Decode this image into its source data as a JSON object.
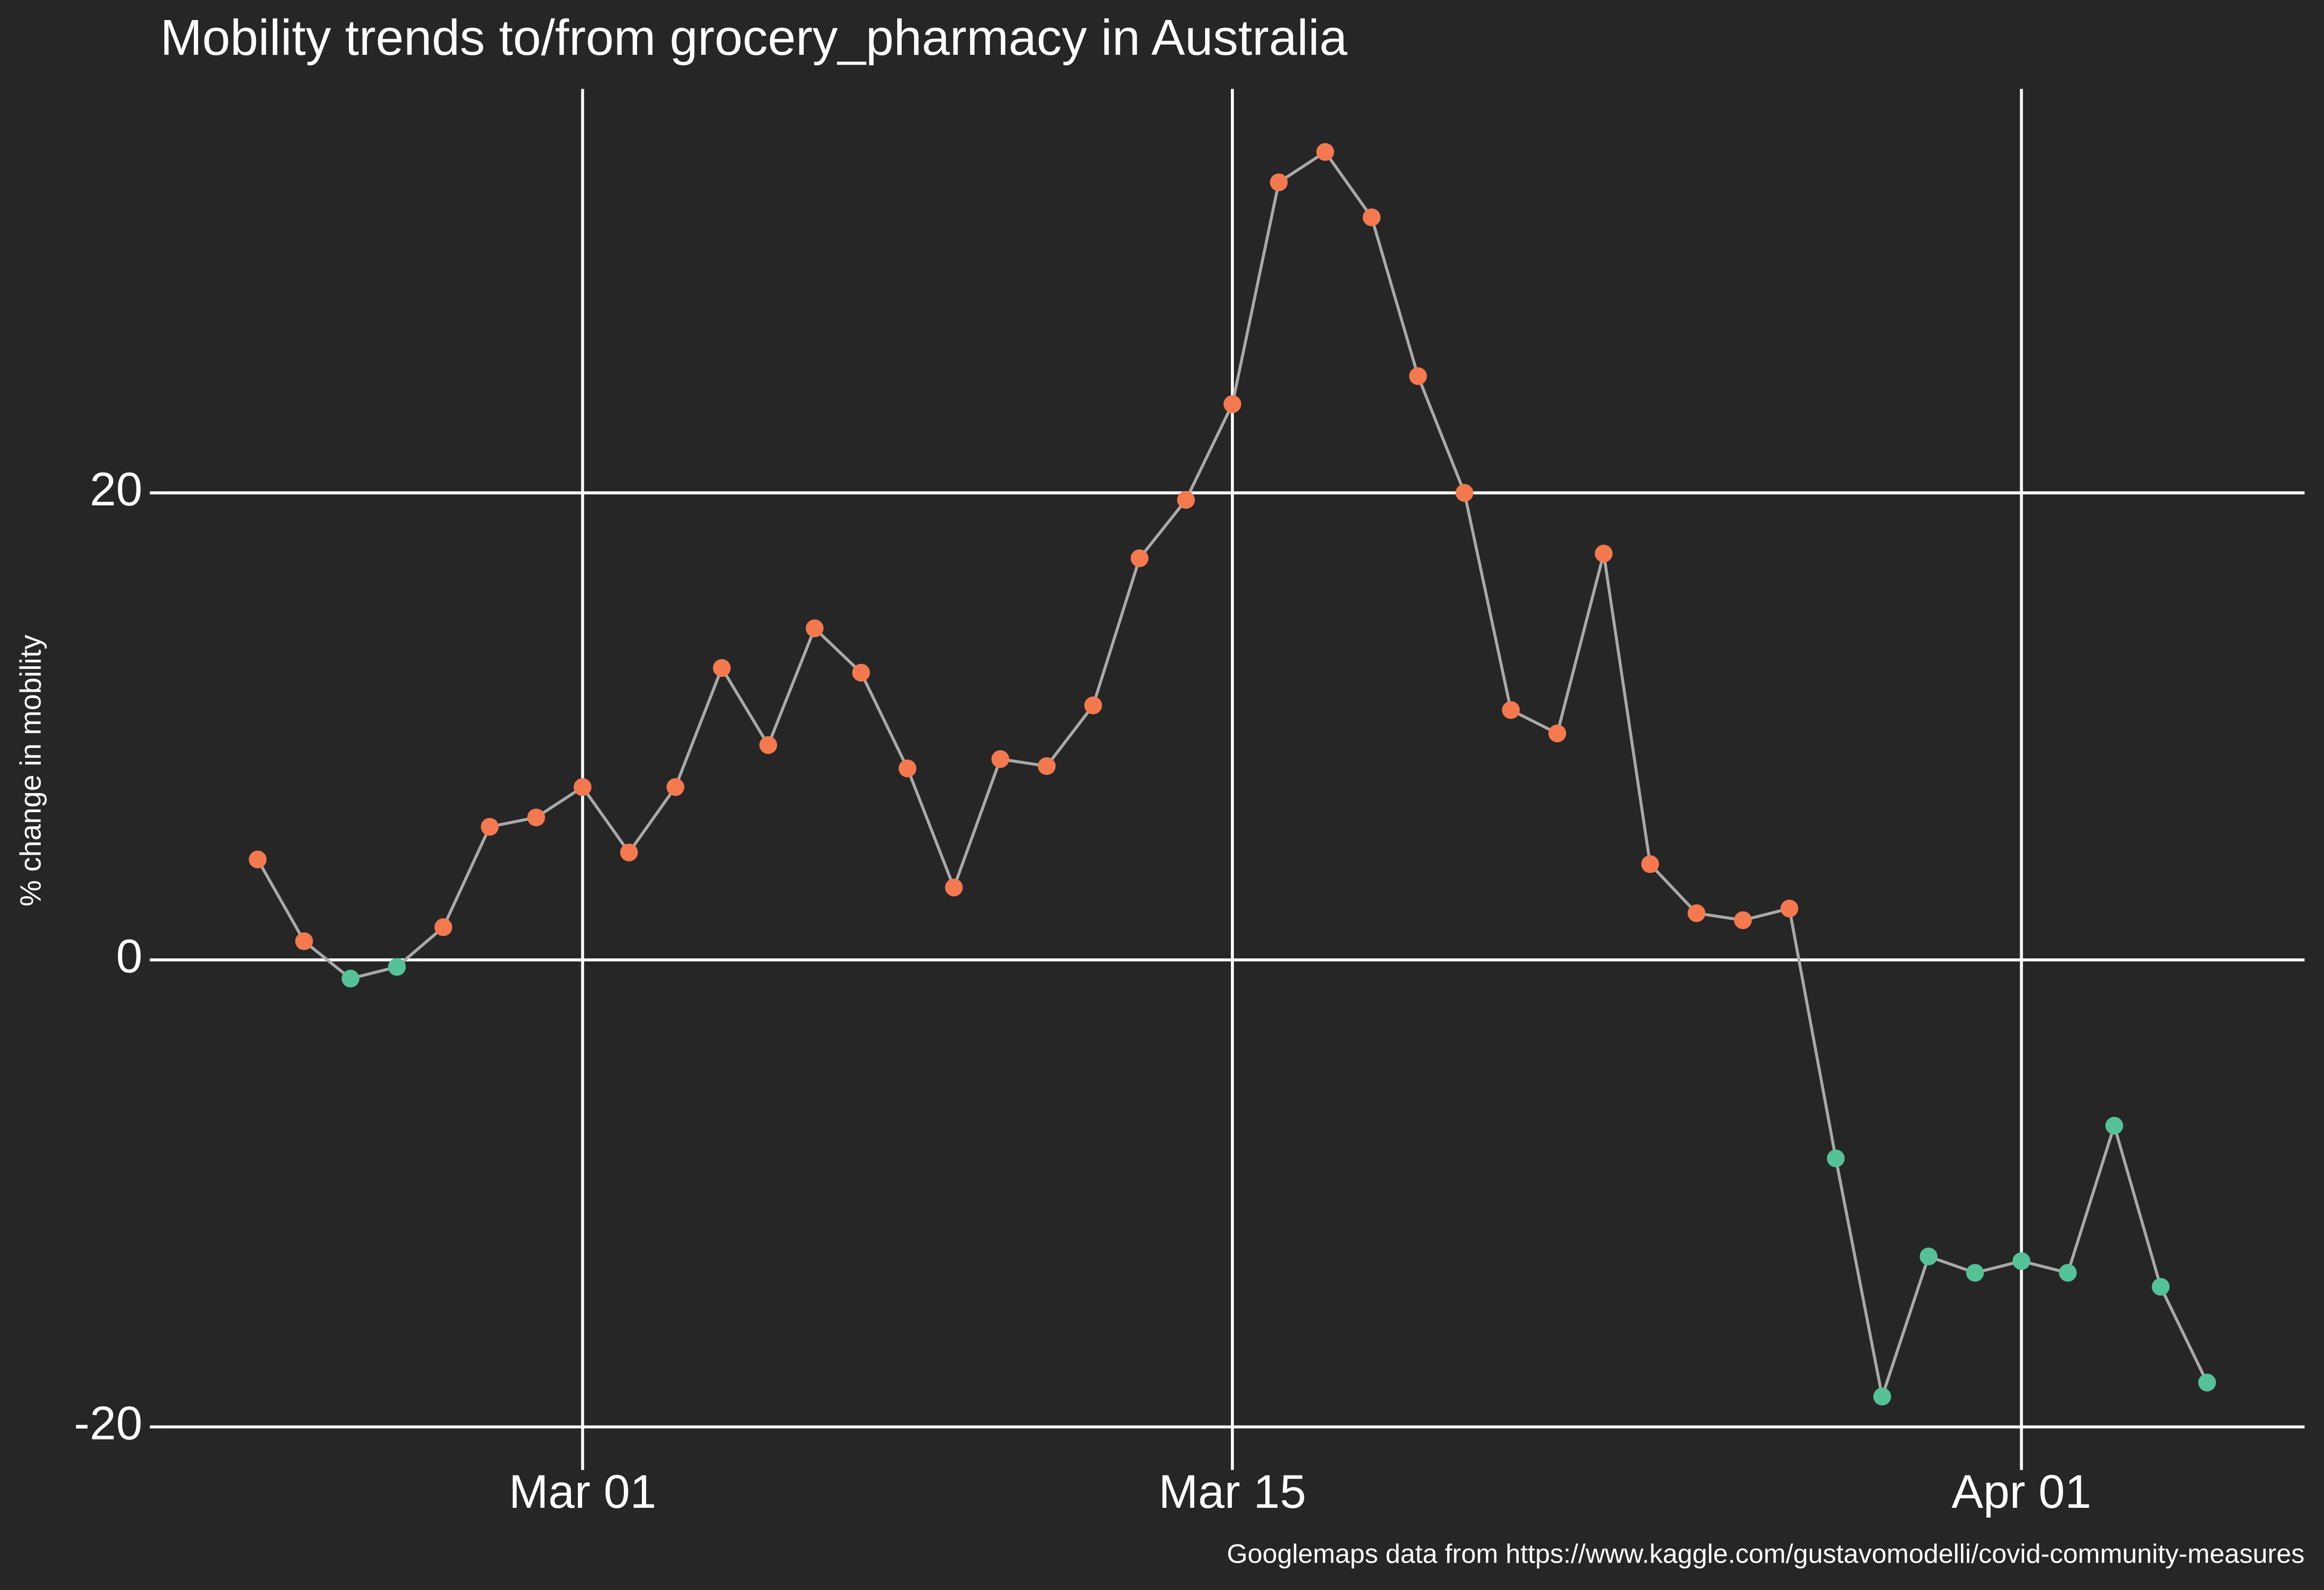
{
  "chart_data": {
    "type": "line",
    "title": "Mobility trends to/from grocery_pharmacy in Australia",
    "y_label": "% change in mobility",
    "caption": "Googlemaps data from https://www.kaggle.com/gustavomodelli/covid-community-measures",
    "x": [
      "Feb 23",
      "Feb 24",
      "Feb 25",
      "Feb 26",
      "Feb 27",
      "Feb 28",
      "Feb 29",
      "Mar 01",
      "Mar 02",
      "Mar 03",
      "Mar 04",
      "Mar 05",
      "Mar 06",
      "Mar 07",
      "Mar 08",
      "Mar 09",
      "Mar 10",
      "Mar 11",
      "Mar 12",
      "Mar 13",
      "Mar 14",
      "Mar 15",
      "Mar 16",
      "Mar 17",
      "Mar 18",
      "Mar 19",
      "Mar 20",
      "Mar 21",
      "Mar 22",
      "Mar 23",
      "Mar 24",
      "Mar 25",
      "Mar 26",
      "Mar 27",
      "Mar 28",
      "Mar 29",
      "Mar 30",
      "Mar 31",
      "Apr 01",
      "Apr 02",
      "Apr 03",
      "Apr 04",
      "Apr 05"
    ],
    "series": [
      {
        "color": "#a9a9a9",
        "values": [
          4.3,
          0.8,
          -0.8,
          -0.3,
          1.4,
          5.7,
          6.1,
          7.4,
          4.6,
          7.4,
          12.5,
          9.2,
          14.2,
          12.3,
          8.2,
          3.1,
          8.6,
          8.3,
          10.9,
          17.2,
          19.7,
          23.8,
          33.3,
          34.6,
          31.8,
          25.0,
          20.0,
          10.7,
          9.7,
          17.4,
          4.1,
          2.0,
          1.7,
          2.2,
          -8.5,
          -18.7,
          -12.7,
          -13.4,
          -12.9,
          -13.4,
          -7.1,
          -14.0,
          -18.1
        ],
        "marker_colors": [
          "#f4794f",
          "#f4794f",
          "#55c196",
          "#55c196",
          "#f4794f",
          "#f4794f",
          "#f4794f",
          "#f4794f",
          "#f4794f",
          "#f4794f",
          "#f4794f",
          "#f4794f",
          "#f4794f",
          "#f4794f",
          "#f4794f",
          "#f4794f",
          "#f4794f",
          "#f4794f",
          "#f4794f",
          "#f4794f",
          "#f4794f",
          "#f4794f",
          "#f4794f",
          "#f4794f",
          "#f4794f",
          "#f4794f",
          "#f4794f",
          "#f4794f",
          "#f4794f",
          "#f4794f",
          "#f4794f",
          "#f4794f",
          "#f4794f",
          "#f4794f",
          "#55c196",
          "#55c196",
          "#55c196",
          "#55c196",
          "#55c196",
          "#55c196",
          "#55c196",
          "#55c196",
          "#55c196"
        ]
      }
    ],
    "xticks": [
      "Mar 01",
      "Mar 15",
      "Apr 01"
    ],
    "ylim": [
      -21.4,
      37.3
    ],
    "yticks": [
      -20,
      0,
      20
    ],
    "grid": true
  }
}
